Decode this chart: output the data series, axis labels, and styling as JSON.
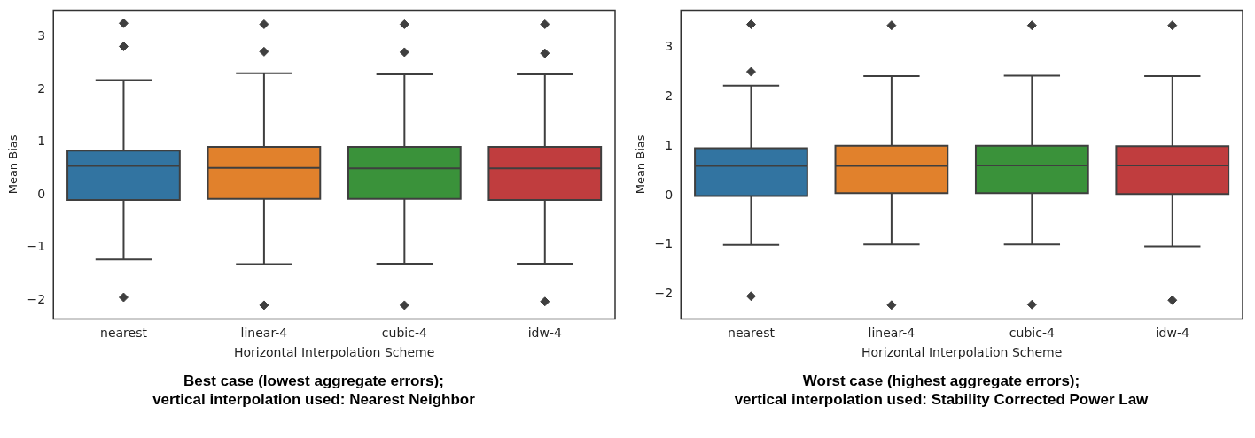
{
  "chart_data": [
    {
      "type": "box",
      "title": "Best case (lowest aggregate errors);\nvertical interpolation used: Nearest Neighbor",
      "xlabel": "Horizontal Interpolation Scheme",
      "ylabel": "Mean Bias",
      "categories": [
        "nearest",
        "linear-4",
        "cubic-4",
        "idw-4"
      ],
      "colors": [
        "#3274a1",
        "#e1812c",
        "#3a923a",
        "#c03d3e"
      ],
      "boxes": [
        {
          "low": -1.23,
          "q1": -0.1,
          "median": 0.55,
          "q3": 0.84,
          "high": 2.18,
          "outliers": [
            3.26,
            2.82,
            -1.95
          ]
        },
        {
          "low": -1.32,
          "q1": -0.08,
          "median": 0.51,
          "q3": 0.91,
          "high": 2.31,
          "outliers": [
            3.24,
            2.72,
            -2.1
          ]
        },
        {
          "low": -1.31,
          "q1": -0.08,
          "median": 0.5,
          "q3": 0.91,
          "high": 2.29,
          "outliers": [
            3.24,
            2.71,
            -2.1
          ]
        },
        {
          "low": -1.31,
          "q1": -0.1,
          "median": 0.5,
          "q3": 0.91,
          "high": 2.29,
          "outliers": [
            3.24,
            2.69,
            -2.03
          ]
        }
      ],
      "ylim": [
        -2.36,
        3.51
      ],
      "yticks": [
        -2,
        -1,
        0,
        1,
        2,
        3
      ],
      "marker": "diamond"
    },
    {
      "type": "box",
      "title": "Worst case (highest aggregate errors);\nvertical interpolation used: Stability Corrected Power Law",
      "xlabel": "Horizontal Interpolation Scheme",
      "ylabel": "Mean Bias",
      "categories": [
        "nearest",
        "linear-4",
        "cubic-4",
        "idw-4"
      ],
      "colors": [
        "#3274a1",
        "#e1812c",
        "#3a923a",
        "#c03d3e"
      ],
      "boxes": [
        {
          "low": -1.0,
          "q1": -0.01,
          "median": 0.6,
          "q3": 0.96,
          "high": 2.23,
          "outliers": [
            3.47,
            2.51,
            -2.04
          ]
        },
        {
          "low": -0.99,
          "q1": 0.05,
          "median": 0.6,
          "q3": 1.01,
          "high": 2.42,
          "outliers": [
            3.45,
            -2.22
          ]
        },
        {
          "low": -0.99,
          "q1": 0.05,
          "median": 0.61,
          "q3": 1.01,
          "high": 2.43,
          "outliers": [
            3.45,
            -2.21
          ]
        },
        {
          "low": -1.03,
          "q1": 0.03,
          "median": 0.61,
          "q3": 1.0,
          "high": 2.42,
          "outliers": [
            3.45,
            -2.12
          ]
        }
      ],
      "ylim": [
        -2.5,
        3.76
      ],
      "yticks": [
        -2,
        -1,
        0,
        1,
        2,
        3
      ],
      "marker": "diamond"
    }
  ]
}
